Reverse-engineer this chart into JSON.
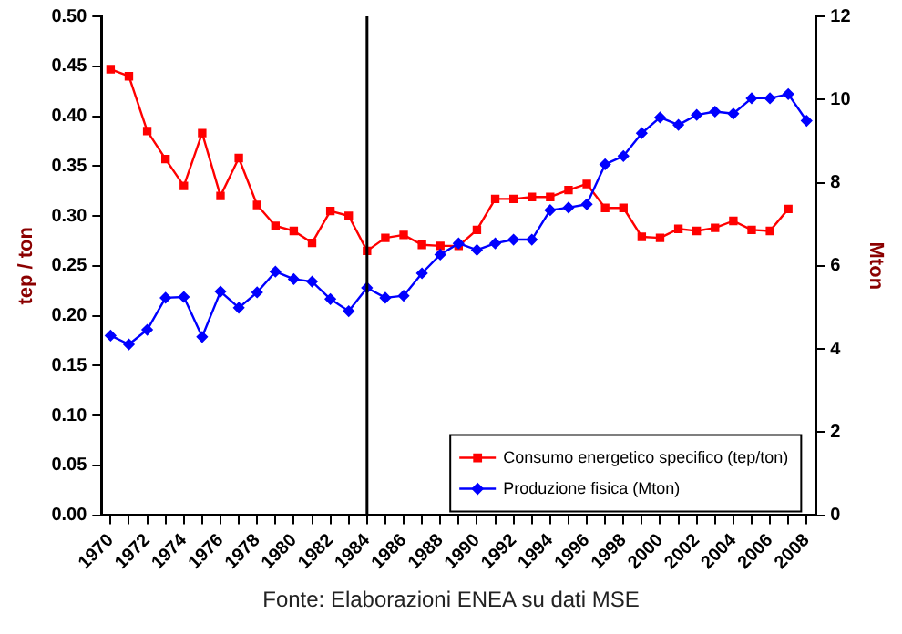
{
  "chart_data": {
    "type": "line",
    "categories": [
      "1970",
      null,
      "1972",
      null,
      "1974",
      null,
      "1976",
      null,
      "1978",
      null,
      "1980",
      null,
      "1982",
      null,
      "1984",
      null,
      "1986",
      null,
      "1988",
      null,
      "1990",
      null,
      "1992",
      null,
      "1994",
      null,
      "1996",
      null,
      "1998",
      null,
      "2000",
      null,
      "2002",
      null,
      "2004",
      null,
      "2006",
      null,
      "2008"
    ],
    "series": [
      {
        "name": "Consumo energetico specifico (tep/ton)",
        "color": "#ff0000",
        "marker": "square",
        "values": [
          0.447,
          0.44,
          0.385,
          0.357,
          0.33,
          0.383,
          0.32,
          0.358,
          0.311,
          0.29,
          0.285,
          0.273,
          0.305,
          0.3,
          0.265,
          0.278,
          0.281,
          0.271,
          0.27,
          0.27,
          0.286,
          0.317,
          0.317,
          0.319,
          0.319,
          0.326,
          0.332,
          0.308,
          0.308,
          0.279,
          0.278,
          0.287,
          0.285,
          0.288,
          0.295,
          0.286,
          0.285,
          0.307,
          null
        ]
      },
      {
        "name": "Produzione fisica (Mton)",
        "color": "#0000ff",
        "marker": "diamond",
        "axis": "y2",
        "values": [
          4.32,
          4.11,
          4.46,
          5.23,
          5.25,
          4.29,
          5.38,
          4.99,
          5.36,
          5.86,
          5.68,
          5.62,
          5.2,
          4.91,
          5.47,
          5.23,
          5.28,
          5.82,
          6.27,
          6.54,
          6.38,
          6.54,
          6.63,
          6.63,
          7.34,
          7.4,
          7.48,
          8.44,
          8.64,
          9.19,
          9.57,
          9.39,
          9.63,
          9.71,
          9.66,
          10.03,
          10.03,
          10.13,
          9.49
        ]
      }
    ],
    "ylabel": "tep / ton",
    "y2label": "Mton",
    "ylim": [
      0,
      0.5
    ],
    "yticks": [
      {
        "value": 0,
        "label": "0.00"
      },
      {
        "value": 0.05,
        "label": "0.05"
      },
      {
        "value": 0.1,
        "label": "0.10"
      },
      {
        "value": 0.15,
        "label": "0.15"
      },
      {
        "value": 0.2,
        "label": "0.20"
      },
      {
        "value": 0.25,
        "label": "0.25"
      },
      {
        "value": 0.3,
        "label": "0.30"
      },
      {
        "value": 0.35,
        "label": "0.35"
      },
      {
        "value": 0.4,
        "label": "0.40"
      },
      {
        "value": 0.45,
        "label": "0.45"
      },
      {
        "value": 0.5,
        "label": "0.50"
      }
    ],
    "y2lim": [
      0,
      12
    ],
    "y2ticks": [
      0,
      2,
      4,
      6,
      8,
      10,
      12
    ],
    "ref_lines": [
      {
        "axis": "x",
        "value": "1984",
        "color": "#000000"
      }
    ],
    "legend": "bottom right",
    "grid": false,
    "annotations": [
      "Fonte: Elaborazioni ENEA su dati MSE"
    ]
  }
}
